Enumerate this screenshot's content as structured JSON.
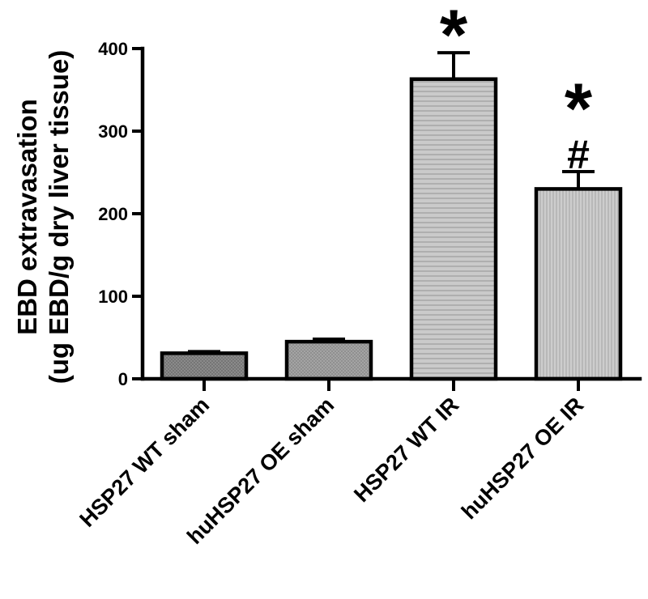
{
  "chart_data": {
    "type": "bar",
    "categories": [
      "HSP27 WT sham",
      "huHSP27 OE sham",
      "HSP27 WT IR",
      "huHSP27 OE IR"
    ],
    "values": [
      31,
      45,
      363,
      230
    ],
    "errors": [
      2,
      3,
      32,
      21
    ],
    "annotations": [
      "",
      "",
      "*",
      "*\n#"
    ],
    "ylabel_line1": "EBD extravasation",
    "ylabel_line2": "(ug EBD/g dry liver tissue)",
    "xlabel": "",
    "ylim": [
      0,
      400
    ],
    "yticks": [
      0,
      100,
      200,
      300,
      400
    ],
    "grid": false,
    "colors": {
      "bar_fills": [
        "#8a8a8a",
        "#a4a4a4",
        "#c2c2c2",
        "#c6c6c6"
      ],
      "bar_patterns": [
        "crosshatch",
        "crosshatch",
        "horizontal",
        "vertical"
      ],
      "outline": "#000000"
    }
  }
}
